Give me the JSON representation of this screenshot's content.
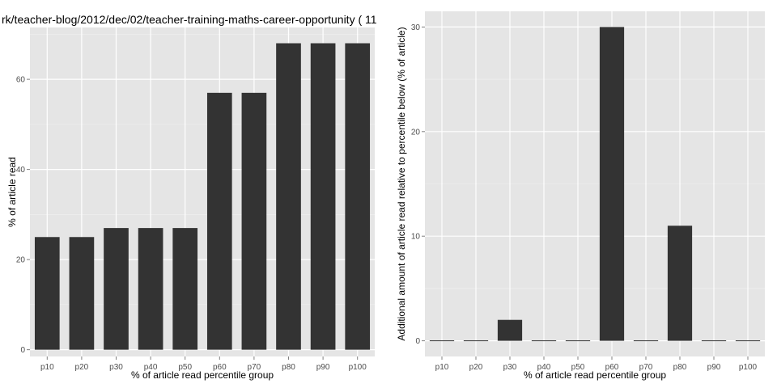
{
  "colors": {
    "panel": "#e5e5e5",
    "grid_major": "#ffffff",
    "grid_minor": "#f2f2f2",
    "bar": "#333333",
    "tick_text": "#4d4d4d"
  },
  "chart_data": [
    {
      "type": "bar",
      "title": "rk/teacher-blog/2012/dec/02/teacher-training-maths-career-opportunity ( 11",
      "xlabel": "% of article read percentile group",
      "ylabel": "% of article read",
      "categories": [
        "p10",
        "p20",
        "p30",
        "p40",
        "p50",
        "p60",
        "p70",
        "p80",
        "p90",
        "p100"
      ],
      "values": [
        25,
        25,
        27,
        27,
        27,
        57,
        57,
        68,
        68,
        68
      ],
      "yticks": [
        0,
        20,
        40,
        60
      ],
      "ylim": [
        -1.5,
        71.5
      ],
      "grid": true
    },
    {
      "type": "bar",
      "title": "",
      "xlabel": "% of article read percentile group",
      "ylabel": "Additional amount of article read relative to percentile below (% of article)",
      "categories": [
        "p10",
        "p20",
        "p30",
        "p40",
        "p50",
        "p60",
        "p70",
        "p80",
        "p90",
        "p100"
      ],
      "values": [
        0,
        0,
        2,
        0,
        0,
        30,
        0,
        11,
        0,
        0
      ],
      "yticks": [
        0,
        10,
        20,
        30
      ],
      "ylim": [
        -1.5,
        31.5
      ],
      "grid": true
    }
  ]
}
